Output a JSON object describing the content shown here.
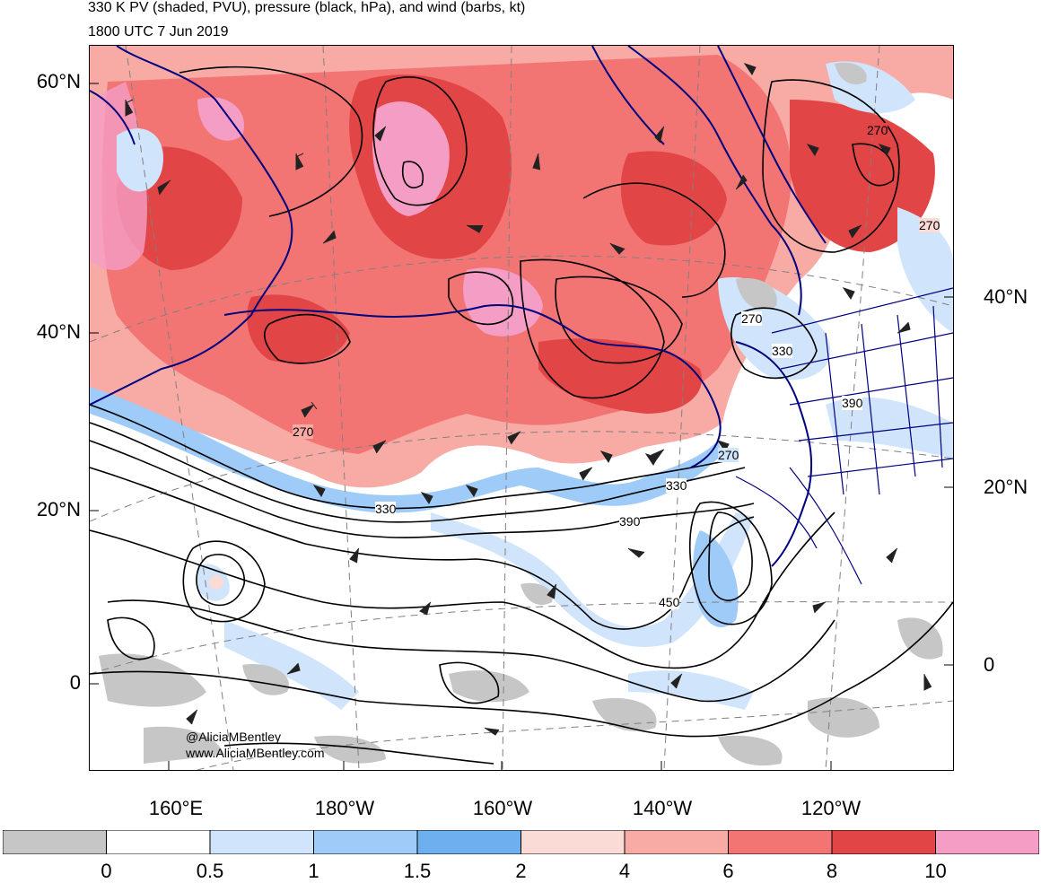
{
  "title_line1": "330 K PV (shaded, PVU), pressure (black, hPa), and wind (barbs, kt)",
  "title_line2": "1800 UTC 7 Jun 2019",
  "lat_labels_left": [
    "60°N",
    "40°N",
    "20°N",
    "0"
  ],
  "lat_labels_right": [
    "40°N",
    "20°N",
    "0"
  ],
  "lon_labels": [
    "160°E",
    "180°W",
    "160°W",
    "140°W",
    "120°W"
  ],
  "contour_labels": [
    "270",
    "330",
    "390",
    "450",
    "270",
    "330",
    "390",
    "270",
    "330",
    "270",
    "270"
  ],
  "credit": [
    "@AliciaMBentley",
    "www.AliciaMBentley.com"
  ],
  "colorbar": {
    "colors": [
      "#c6c6c6",
      "#ffffff",
      "#d0e4fb",
      "#9fcbf9",
      "#6dafef",
      "#fadbd6",
      "#f8aaa5",
      "#f27574",
      "#e24546",
      "#f59ec5"
    ],
    "tick_labels": [
      "0",
      "0.5",
      "1",
      "1.5",
      "2",
      "4",
      "6",
      "8",
      "10"
    ]
  },
  "colors": {
    "coast": "#000080",
    "contour": "#000000",
    "grid": "#808080"
  }
}
